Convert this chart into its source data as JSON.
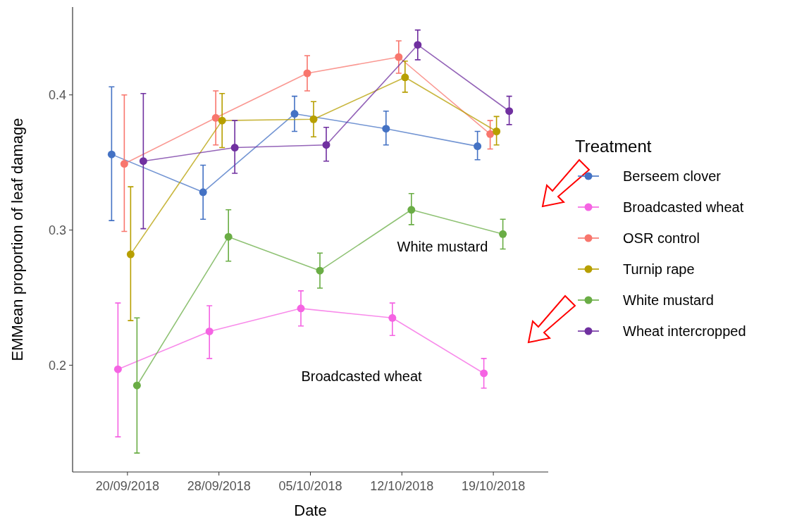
{
  "chart_data": {
    "type": "line",
    "xlabel": "Date",
    "ylabel": "EMMean proportion of leaf damage",
    "legend_title": "Treatment",
    "legend": "right",
    "marker": "circle",
    "grid": false,
    "categories": [
      "20/09/2018",
      "28/09/2018",
      "05/10/2018",
      "12/10/2018",
      "19/10/2018"
    ],
    "ylim": [
      0.121,
      0.465
    ],
    "yticks": [
      0.2,
      0.3,
      0.4
    ],
    "series": [
      {
        "name": "Berseem clover",
        "color": "#4472c4",
        "values": [
          0.356,
          0.328,
          0.386,
          0.375,
          0.362
        ],
        "errors": [
          [
            0.307,
            0.406
          ],
          [
            0.308,
            0.348
          ],
          [
            0.373,
            0.399
          ],
          [
            0.363,
            0.388
          ],
          [
            0.352,
            0.373
          ]
        ]
      },
      {
        "name": "Broadcasted wheat",
        "color": "#f564e3",
        "values": [
          0.197,
          0.225,
          0.242,
          0.235,
          0.194
        ],
        "errors": [
          [
            0.147,
            0.246
          ],
          [
            0.205,
            0.244
          ],
          [
            0.229,
            0.255
          ],
          [
            0.222,
            0.246
          ],
          [
            0.183,
            0.205
          ]
        ]
      },
      {
        "name": "OSR control",
        "color": "#f8766d",
        "values": [
          0.349,
          0.383,
          0.416,
          0.428,
          0.371
        ],
        "errors": [
          [
            0.299,
            0.4
          ],
          [
            0.363,
            0.403
          ],
          [
            0.403,
            0.429
          ],
          [
            0.416,
            0.44
          ],
          [
            0.36,
            0.381
          ]
        ]
      },
      {
        "name": "Turnip rape",
        "color": "#b79f00",
        "values": [
          0.282,
          0.381,
          0.382,
          0.413,
          0.373
        ],
        "errors": [
          [
            0.233,
            0.332
          ],
          [
            0.361,
            0.401
          ],
          [
            0.369,
            0.395
          ],
          [
            0.402,
            0.425
          ],
          [
            0.363,
            0.384
          ]
        ]
      },
      {
        "name": "White mustard",
        "color": "#6aad45",
        "values": [
          0.185,
          0.295,
          0.27,
          0.315,
          0.297
        ],
        "errors": [
          [
            0.135,
            0.235
          ],
          [
            0.277,
            0.315
          ],
          [
            0.257,
            0.283
          ],
          [
            0.304,
            0.327
          ],
          [
            0.286,
            0.308
          ]
        ]
      },
      {
        "name": "Wheat intercropped",
        "color": "#7030a0",
        "values": [
          0.351,
          0.361,
          0.363,
          0.437,
          0.388
        ],
        "errors": [
          [
            0.301,
            0.401
          ],
          [
            0.342,
            0.381
          ],
          [
            0.351,
            0.376
          ],
          [
            0.426,
            0.448
          ],
          [
            0.378,
            0.399
          ]
        ]
      }
    ],
    "annotations": [
      "White mustard",
      "Broadcasted wheat"
    ]
  }
}
